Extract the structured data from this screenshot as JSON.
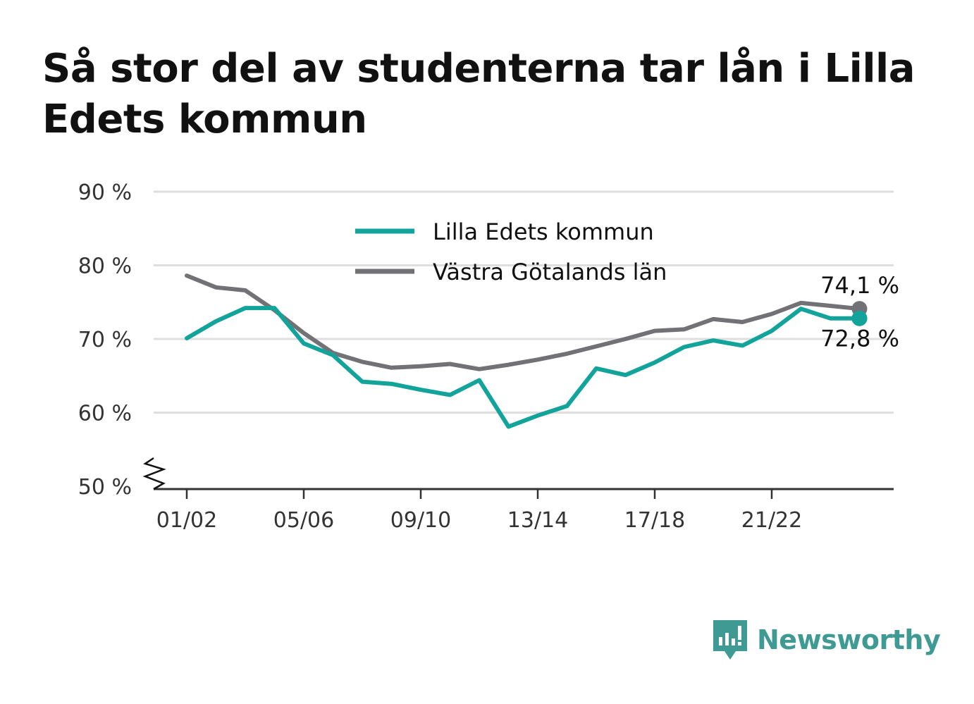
{
  "title": "Så stor del av studenterna tar lån i Lilla Edets kommun",
  "brand": {
    "name": "Newsworthy",
    "icon": "newsworthy-logo-icon",
    "color": "#3e9a92"
  },
  "chart_data": {
    "type": "line",
    "title": "Så stor del av studenterna tar lån i Lilla Edets kommun",
    "xlabel": "",
    "ylabel": "",
    "ylim": [
      50,
      90
    ],
    "y_axis_break": true,
    "grid": true,
    "legend_position": "top-center",
    "y_ticks": [
      {
        "value": 90,
        "label": "90 %"
      },
      {
        "value": 80,
        "label": "80 %"
      },
      {
        "value": 70,
        "label": "70 %"
      },
      {
        "value": 60,
        "label": "60 %"
      },
      {
        "value": 50,
        "label": "50 %"
      }
    ],
    "x_ticks": [
      {
        "index": 0,
        "label": "01/02"
      },
      {
        "index": 4,
        "label": "05/06"
      },
      {
        "index": 8,
        "label": "09/10"
      },
      {
        "index": 12,
        "label": "13/14"
      },
      {
        "index": 16,
        "label": "17/18"
      },
      {
        "index": 20,
        "label": "21/22"
      }
    ],
    "x": [
      "01/02",
      "02/03",
      "03/04",
      "04/05",
      "05/06",
      "06/07",
      "07/08",
      "08/09",
      "09/10",
      "10/11",
      "11/12",
      "12/13",
      "13/14",
      "14/15",
      "15/16",
      "16/17",
      "17/18",
      "18/19",
      "19/20",
      "20/21",
      "21/22",
      "22/23",
      "23/24",
      "24/25"
    ],
    "series": [
      {
        "name": "Lilla Edets kommun",
        "color": "#12a39a",
        "end_label": "72,8 %",
        "values": [
          70.1,
          72.4,
          74.2,
          74.2,
          69.4,
          67.8,
          64.2,
          63.9,
          63.1,
          62.4,
          64.4,
          58.1,
          59.6,
          60.9,
          66.0,
          65.1,
          66.8,
          68.9,
          69.8,
          69.1,
          71.1,
          74.1,
          72.8,
          72.8
        ]
      },
      {
        "name": "Västra Götalands län",
        "color": "#727276",
        "end_label": "74,1 %",
        "values": [
          78.6,
          77.0,
          76.6,
          73.9,
          70.8,
          68.1,
          66.9,
          66.1,
          66.3,
          66.6,
          65.9,
          66.5,
          67.2,
          68.0,
          69.0,
          70.0,
          71.1,
          71.3,
          72.7,
          72.3,
          73.4,
          74.9,
          74.5,
          74.1
        ]
      }
    ]
  }
}
